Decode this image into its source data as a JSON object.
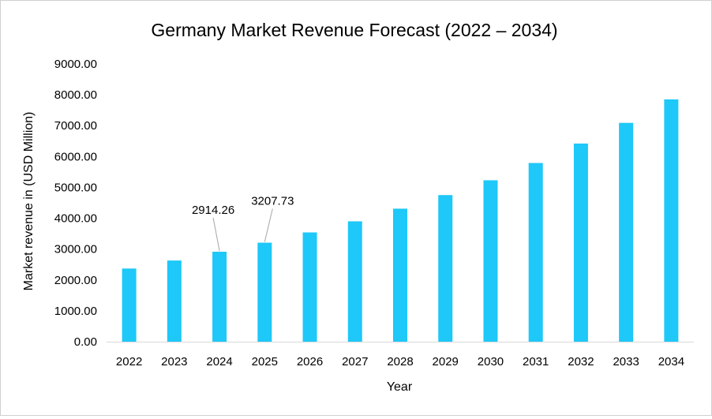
{
  "chart_data": {
    "type": "bar",
    "title": "Germany Market Revenue Forecast (2022 – 2034)",
    "xlabel": "Year",
    "ylabel": "Market revenue in (USD Million)",
    "ylim": [
      0,
      9000
    ],
    "yticks": [
      "0.00",
      "1000.00",
      "2000.00",
      "3000.00",
      "4000.00",
      "5000.00",
      "6000.00",
      "7000.00",
      "8000.00",
      "9000.00"
    ],
    "categories": [
      "2022",
      "2023",
      "2024",
      "2025",
      "2026",
      "2027",
      "2028",
      "2029",
      "2030",
      "2031",
      "2032",
      "2033",
      "2034"
    ],
    "values": [
      2370,
      2630,
      2914.26,
      3207.73,
      3540,
      3900,
      4310,
      4750,
      5230,
      5790,
      6420,
      7090,
      7850
    ],
    "grid": false,
    "legend": "none",
    "bar_color": "#1ec8f8",
    "annotations": [
      {
        "category": "2024",
        "text": "2914.26"
      },
      {
        "category": "2025",
        "text": "3207.73"
      }
    ]
  }
}
